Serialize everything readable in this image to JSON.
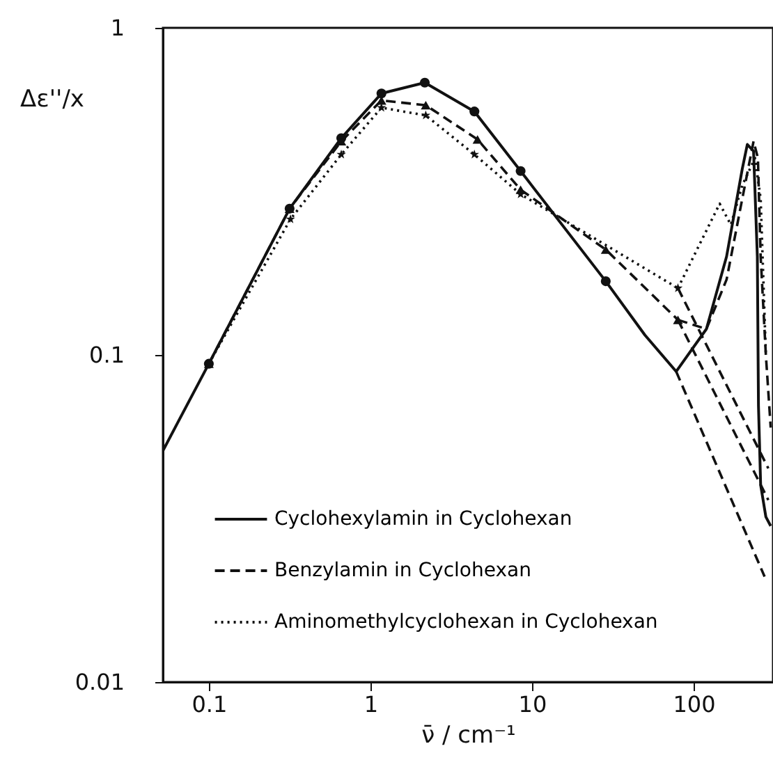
{
  "chart_data": {
    "type": "line",
    "xlabel": "ν̄ / cm⁻¹",
    "ylabel": "Δε''/x",
    "log": "xy",
    "xlim": [
      0.052,
      310
    ],
    "ylim": [
      0.01,
      1
    ],
    "xticks": [
      0.1,
      1,
      10,
      100
    ],
    "yticks": [
      0.01,
      0.1,
      1
    ],
    "grid": false,
    "legend": "bottom left",
    "series": [
      {
        "name": "Cyclohexylamin in Cyclohexan",
        "color": "#111111",
        "line_style": "solid",
        "marker": "circle",
        "x": [
          0.1,
          0.316,
          0.66,
          1.17,
          2.17,
          4.4,
          8.5,
          28.6
        ],
        "values": [
          0.094,
          0.28,
          0.46,
          0.63,
          0.68,
          0.555,
          0.365,
          0.168
        ]
      },
      {
        "name": "Benzylamin in Cyclohexan",
        "color": "#111111",
        "line_style": "dashed",
        "marker": "triangle",
        "x": [
          0.1,
          0.316,
          0.66,
          1.17,
          2.2,
          4.6,
          8.5,
          28.6,
          80
        ],
        "values": [
          0.094,
          0.28,
          0.45,
          0.6,
          0.58,
          0.456,
          0.32,
          0.21,
          0.128
        ]
      },
      {
        "name": "Aminomethylcyclohexan in Cyclohexan",
        "color": "#111111",
        "line_style": "dotted",
        "marker": "star",
        "x": [
          0.1,
          0.32,
          0.66,
          1.17,
          2.2,
          4.4,
          8.5,
          80
        ],
        "values": [
          0.094,
          0.26,
          0.41,
          0.57,
          0.54,
          0.41,
          0.31,
          0.16
        ]
      },
      {
        "color": "#111111",
        "line_style": "solid",
        "marker": "none",
        "x": [
          0.052,
          0.1
        ],
        "values": [
          0.051,
          0.094
        ]
      },
      {
        "color": "#111111",
        "line_style": "solid",
        "marker": "none",
        "x": [
          28.6,
          50,
          78,
          120,
          160,
          200,
          215,
          235,
          248,
          252,
          260,
          280,
          300
        ],
        "values": [
          0.168,
          0.115,
          0.089,
          0.12,
          0.2,
          0.37,
          0.44,
          0.42,
          0.2,
          0.07,
          0.04,
          0.032,
          0.03
        ]
      },
      {
        "color": "#111111",
        "line_style": "dashed",
        "marker": "none",
        "x": [
          80,
          120,
          160,
          200,
          235,
          250,
          260,
          280,
          300
        ],
        "values": [
          0.128,
          0.12,
          0.17,
          0.3,
          0.45,
          0.4,
          0.2,
          0.1,
          0.06
        ]
      },
      {
        "color": "#111111",
        "line_style": "dotted",
        "marker": "none",
        "x": [
          80,
          110,
          145,
          170,
          200,
          240,
          260,
          280
        ],
        "values": [
          0.16,
          0.22,
          0.29,
          0.25,
          0.33,
          0.4,
          0.3,
          0.1
        ]
      },
      {
        "color": "#111111",
        "line_style": "dashed",
        "marker": "none",
        "x": [
          78,
          275
        ],
        "values": [
          0.089,
          0.021
        ]
      },
      {
        "color": "#111111",
        "line_style": "dashed",
        "marker": "none",
        "x": [
          80,
          290
        ],
        "values": [
          0.128,
          0.036
        ]
      },
      {
        "color": "#111111",
        "line_style": "dashed",
        "marker": "none",
        "x": [
          80,
          290
        ],
        "values": [
          0.16,
          0.045
        ]
      }
    ]
  }
}
